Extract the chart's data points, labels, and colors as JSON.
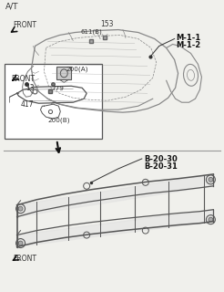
{
  "bg_color": "#f0f0ec",
  "top_label_AT": "A/T",
  "top_label_FRONT": "FRONT",
  "part_417": "417",
  "part_153": "153",
  "part_611B": "611(B)",
  "label_M11": "M-1-1",
  "label_M12": "M-1-2",
  "box_label_FRONT": "FRONT",
  "bottom_label_FRONT": "FRONT",
  "part_200A": "200(A)",
  "part_13": "13",
  "part_779": "779",
  "part_200B": "200(B)",
  "label_B2030": "B-20-30",
  "label_B2031": "B-20-31",
  "line_color": "#888888",
  "dark_line": "#555555",
  "text_color": "#333333",
  "bold_color": "#111111",
  "white": "#ffffff"
}
